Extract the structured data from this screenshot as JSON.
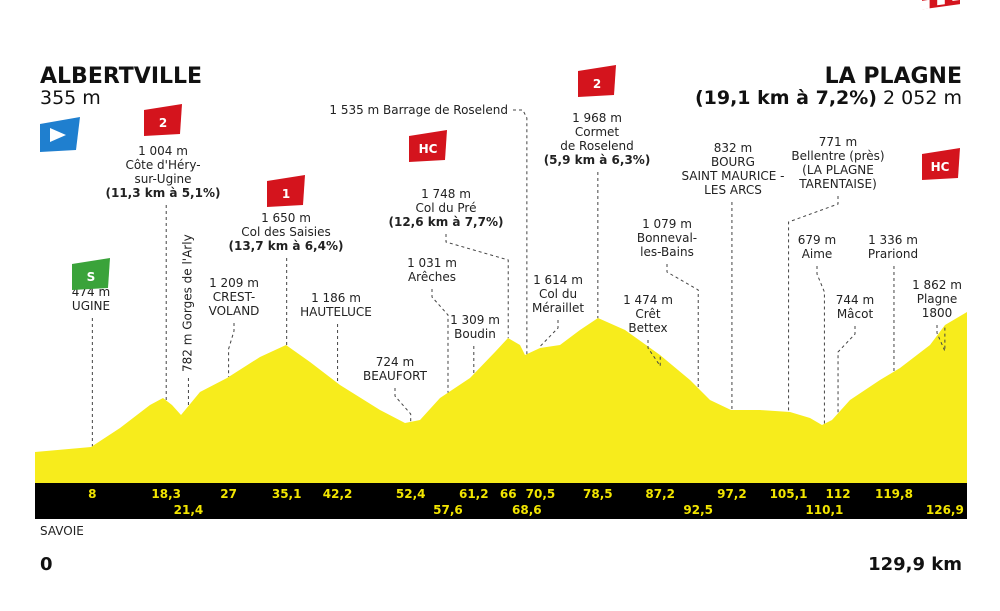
{
  "header": {
    "start": {
      "name": "ALBERTVILLE",
      "altitude": "355 m"
    },
    "finish": {
      "name": "LA PLAGNE",
      "climb": "(19,1 km à 7,2%)",
      "altitude": "2 052 m",
      "category": "HC"
    }
  },
  "waypoints": [
    {
      "km": "8",
      "lines": [
        "474 m",
        "UGINE"
      ],
      "category": "S"
    },
    {
      "km": "18,3",
      "lines": [
        "1 004 m",
        "Côte d'Héry-",
        "sur-Ugine",
        "(11,3 km à 5,1%)"
      ],
      "category": "2"
    },
    {
      "km": "21,4",
      "lines": [
        "782 m Gorges de l'Arly"
      ]
    },
    {
      "km": "27",
      "lines": [
        "1 209 m",
        "CREST-",
        "VOLAND"
      ]
    },
    {
      "km": "35,1",
      "lines": [
        "1 650 m",
        "Col des Saisies",
        "(13,7 km à 6,4%)"
      ],
      "category": "1"
    },
    {
      "km": "42,2",
      "lines": [
        "1 186 m",
        "HAUTELUCE"
      ]
    },
    {
      "km": "52,4",
      "lines": [
        "724 m",
        "BEAUFORT"
      ]
    },
    {
      "km": "57,6",
      "lines": [
        "1 031 m",
        "Arêches"
      ]
    },
    {
      "km": "61,2",
      "lines": [
        "1 309 m",
        "Boudin"
      ]
    },
    {
      "km": "66",
      "lines": [
        "1 748 m",
        "Col du Pré",
        "(12,6 km à 7,7%)"
      ],
      "category": "HC"
    },
    {
      "km": "68,6",
      "lines": [
        "1 535 m Barrage de Roselend"
      ]
    },
    {
      "km": "70,5",
      "lines": [
        "1 614 m",
        "Col du",
        "Méraillet"
      ]
    },
    {
      "km": "78,5",
      "lines": [
        "1 968 m",
        "Cormet",
        "de Roselend",
        "(5,9 km à 6,3%)"
      ],
      "category": "2"
    },
    {
      "km": "87,2",
      "lines": [
        "1 474 m",
        "Crêt",
        "Bettex"
      ]
    },
    {
      "km": "92,5",
      "lines": [
        "1 079 m",
        "Bonneval-",
        "les-Bains"
      ]
    },
    {
      "km": "97,2",
      "lines": [
        "832 m",
        "BOURG",
        "SAINT MAURICE -",
        "LES ARCS"
      ]
    },
    {
      "km": "105,1",
      "lines": [
        "771 m",
        "Bellentre (près)",
        "(LA PLAGNE",
        "TARENTAISE)"
      ]
    },
    {
      "km": "110,1",
      "lines": [
        "679 m",
        "Aime"
      ]
    },
    {
      "km": "112",
      "lines": [
        "744 m",
        "Mâcot"
      ]
    },
    {
      "km": "119,8",
      "lines": [
        "1 336 m",
        "Prariond"
      ]
    },
    {
      "km": "126,9",
      "lines": [
        "1 862 m",
        "Plagne",
        "1800"
      ]
    }
  ],
  "footer": {
    "region": "SAVOIE",
    "start_km": "0",
    "total": "129,9 km"
  }
}
